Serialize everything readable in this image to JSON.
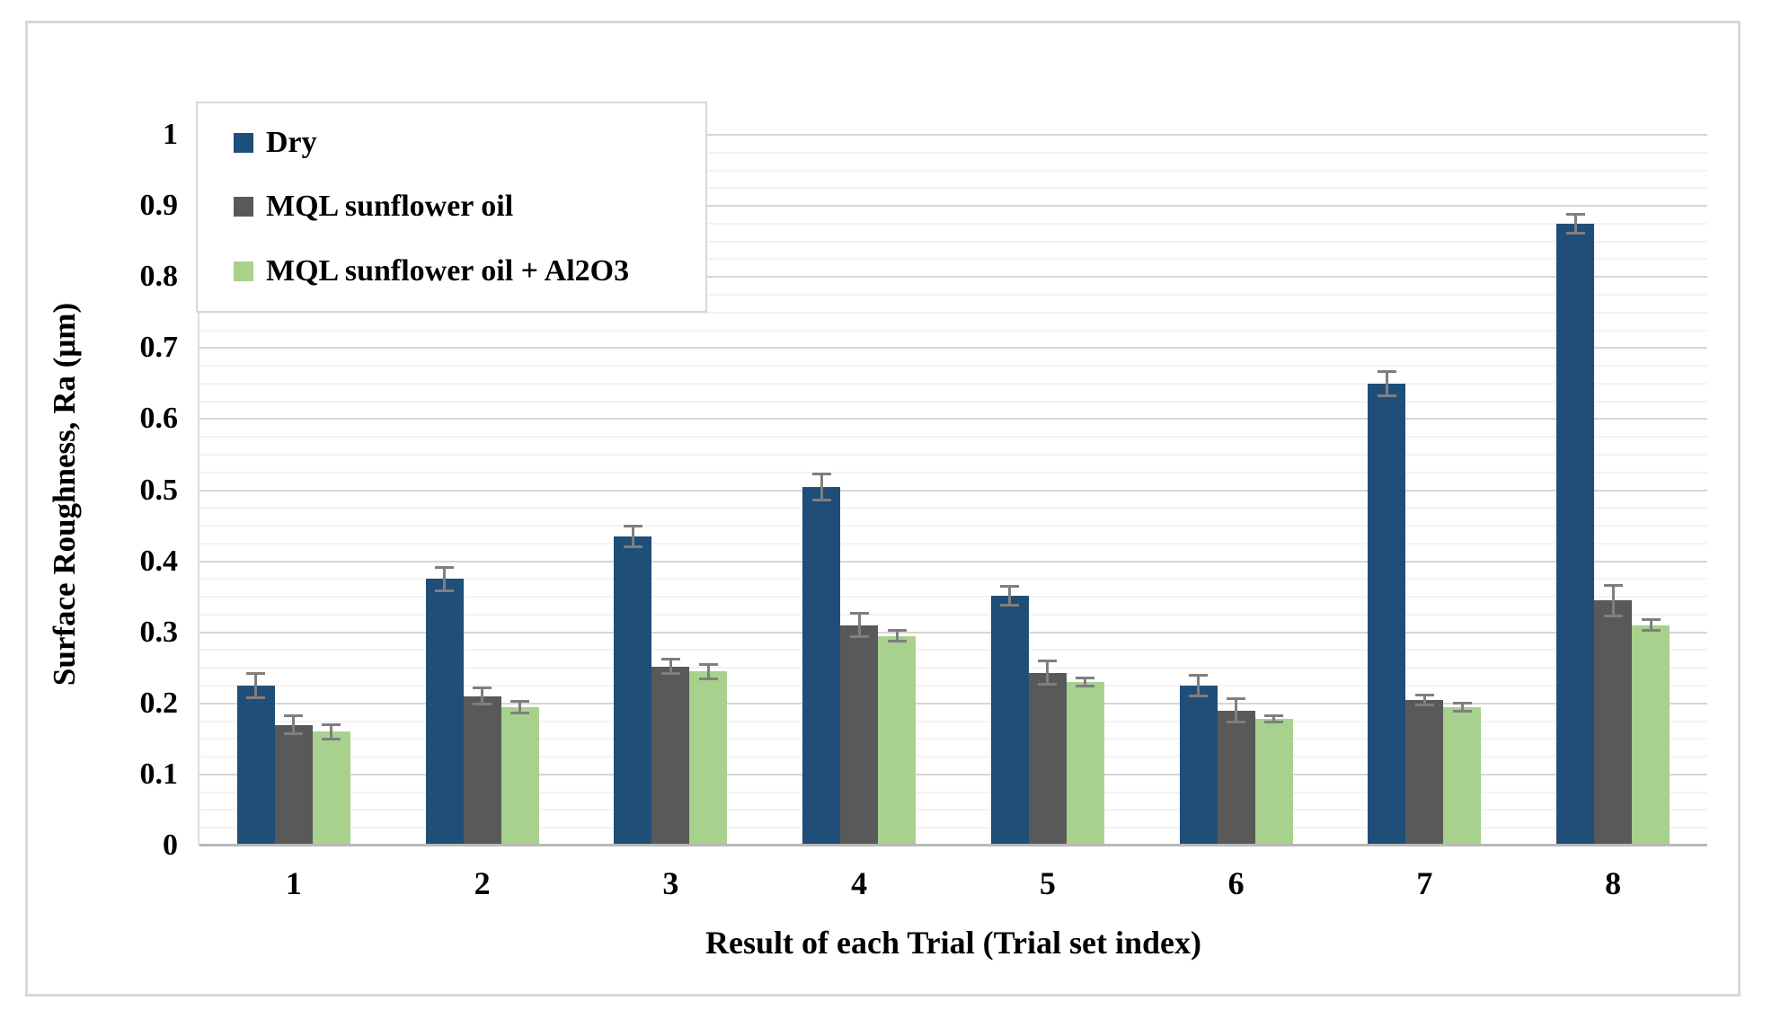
{
  "chart_data": {
    "type": "bar",
    "title": "",
    "xlabel": "Result of each Trial (Trial set index)",
    "ylabel": "Surface Roughness, Ra (μm)",
    "categories": [
      "1",
      "2",
      "3",
      "4",
      "5",
      "6",
      "7",
      "8"
    ],
    "ylim": [
      0,
      1
    ],
    "y_major_tick": 0.1,
    "y_minor_tick": 0.025,
    "y_tick_labels": [
      "0",
      "0.1",
      "0.2",
      "0.3",
      "0.4",
      "0.5",
      "0.6",
      "0.7",
      "0.8",
      "0.9",
      "1"
    ],
    "grid": "horizontal major and minor gridlines",
    "legend_position": "top-left inside plot area",
    "error_bars": true,
    "error_bar_color": "#7F7F7F",
    "series": [
      {
        "name": "Dry",
        "color": "#1F4E79",
        "values": [
          0.225,
          0.375,
          0.435,
          0.505,
          0.351,
          0.225,
          0.65,
          0.875
        ],
        "errors": [
          0.018,
          0.017,
          0.015,
          0.019,
          0.014,
          0.015,
          0.018,
          0.014
        ]
      },
      {
        "name": "MQL sunflower oil",
        "color": "#595959",
        "values": [
          0.17,
          0.21,
          0.252,
          0.31,
          0.243,
          0.19,
          0.205,
          0.345
        ],
        "errors": [
          0.013,
          0.012,
          0.011,
          0.017,
          0.017,
          0.017,
          0.008,
          0.022
        ]
      },
      {
        "name": "MQL sunflower oil + Al2O3",
        "color": "#A9D18E",
        "values": [
          0.16,
          0.195,
          0.245,
          0.295,
          0.23,
          0.178,
          0.195,
          0.31
        ],
        "errors": [
          0.011,
          0.009,
          0.011,
          0.008,
          0.006,
          0.005,
          0.006,
          0.008
        ]
      }
    ]
  }
}
